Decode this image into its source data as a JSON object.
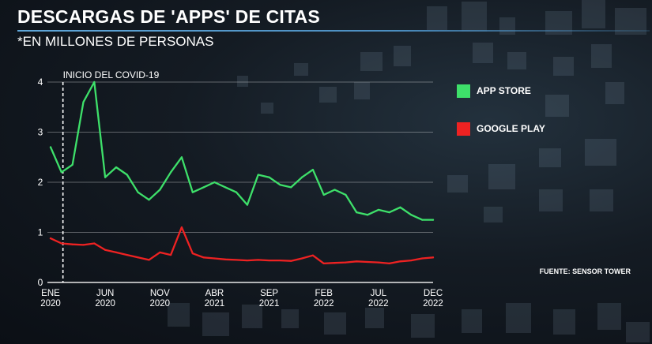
{
  "title": "DESCARGAS DE 'APPS' DE CITAS",
  "subtitle": "*EN MILLONES DE PERSONAS",
  "source": "FUENTE: SENSOR TOWER",
  "chart_data": {
    "type": "line",
    "x": [
      "2020-01",
      "2020-02",
      "2020-03",
      "2020-04",
      "2020-05",
      "2020-06",
      "2020-07",
      "2020-08",
      "2020-09",
      "2020-10",
      "2020-11",
      "2020-12",
      "2021-01",
      "2021-02",
      "2021-03",
      "2021-04",
      "2021-05",
      "2021-06",
      "2021-07",
      "2021-08",
      "2021-09",
      "2021-10",
      "2021-11",
      "2021-12",
      "2022-01",
      "2022-02",
      "2022-03",
      "2022-04",
      "2022-05",
      "2022-06",
      "2022-07",
      "2022-08",
      "2022-09",
      "2022-10",
      "2022-11",
      "2022-12"
    ],
    "ticks": [
      {
        "x": "2020-01",
        "line1": "ENE",
        "line2": "2020"
      },
      {
        "x": "2020-06",
        "line1": "JUN",
        "line2": "2020"
      },
      {
        "x": "2020-11",
        "line1": "NOV",
        "line2": "2020"
      },
      {
        "x": "2021-04",
        "line1": "ABR",
        "line2": "2021"
      },
      {
        "x": "2021-09",
        "line1": "SEP",
        "line2": "2021"
      },
      {
        "x": "2022-02",
        "line1": "FEB",
        "line2": "2022"
      },
      {
        "x": "2022-07",
        "line1": "JUL",
        "line2": "2022"
      },
      {
        "x": "2022-12",
        "line1": "DEC",
        "line2": "2022"
      }
    ],
    "yticks": [
      "0",
      "1",
      "2",
      "3",
      "4"
    ],
    "ylim": [
      0,
      4
    ],
    "grid": true,
    "legend_position": "right",
    "series": [
      {
        "name": "APP STORE",
        "color": "#3ee06a",
        "values": [
          2.7,
          2.2,
          2.35,
          3.6,
          4.0,
          2.1,
          2.3,
          2.15,
          1.8,
          1.65,
          1.85,
          2.2,
          2.5,
          1.8,
          1.9,
          2.0,
          1.9,
          1.8,
          1.55,
          2.15,
          2.1,
          1.95,
          1.9,
          2.1,
          2.25,
          1.75,
          1.85,
          1.75,
          1.4,
          1.35,
          1.45,
          1.4,
          1.5,
          1.35,
          1.25,
          1.25
        ]
      },
      {
        "name": "GOOGLE PLAY",
        "color": "#ee2222",
        "values": [
          0.88,
          0.78,
          0.76,
          0.75,
          0.78,
          0.65,
          0.6,
          0.55,
          0.5,
          0.45,
          0.6,
          0.55,
          1.1,
          0.58,
          0.5,
          0.48,
          0.46,
          0.45,
          0.44,
          0.45,
          0.44,
          0.44,
          0.43,
          0.48,
          0.54,
          0.38,
          0.39,
          0.4,
          0.42,
          0.41,
          0.4,
          0.38,
          0.42,
          0.44,
          0.48,
          0.5
        ]
      }
    ],
    "annotations": [
      {
        "text": "INICIO DEL COVID-19",
        "x": "2020-03",
        "style": "dashed-vertical"
      }
    ]
  }
}
